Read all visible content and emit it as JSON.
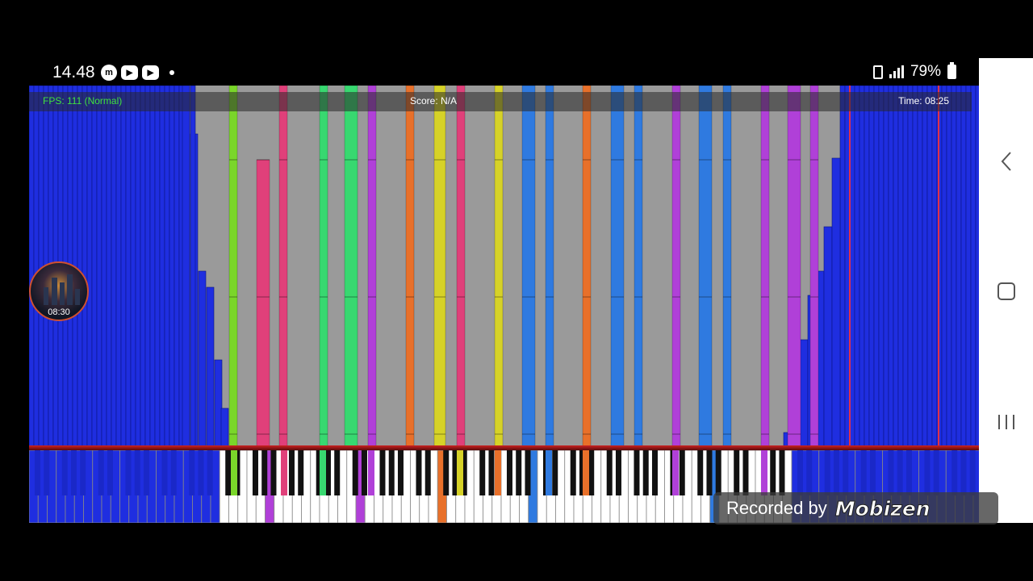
{
  "status_bar": {
    "time": "14.48",
    "notification_icons": [
      "mobizen-icon",
      "youtube-icon",
      "youtube-icon"
    ],
    "battery_percent": "79%"
  },
  "game": {
    "fps_label": "FPS: 111 (Normal)",
    "score_label": "Score: N/A",
    "time_label": "Time: 08:25"
  },
  "widget": {
    "time": "08:30"
  },
  "watermark": {
    "text": "Recorded by",
    "brand": "Mobizen"
  },
  "nav": {
    "buttons": [
      "back-icon",
      "home-icon",
      "recent-apps-icon"
    ]
  },
  "colors": {
    "note_blue": "#1f2ee0",
    "note_pink": "#e0407a",
    "note_green": "#38d870",
    "note_purple": "#b040d8",
    "note_orange": "#e8702a",
    "note_yellow": "#d6d228",
    "note_lightblue": "#2f7ae0",
    "lime": "#7ad62a",
    "background_gray": "#9a9a9a"
  }
}
